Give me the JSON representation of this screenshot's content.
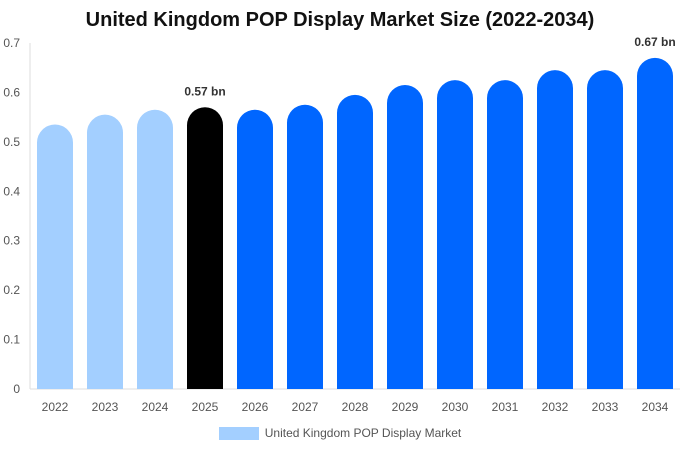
{
  "chart_data": {
    "type": "bar",
    "title": "United Kingdom POP Display Market Size (2022-2034)",
    "categories": [
      "2022",
      "2023",
      "2024",
      "2025",
      "2026",
      "2027",
      "2028",
      "2029",
      "2030",
      "2031",
      "2032",
      "2033",
      "2034"
    ],
    "series": [
      {
        "name": "United Kingdom POP Display Market",
        "values": [
          0.535,
          0.555,
          0.565,
          0.57,
          0.565,
          0.575,
          0.595,
          0.615,
          0.625,
          0.625,
          0.645,
          0.645,
          0.67
        ]
      }
    ],
    "bar_colors": [
      "#a3cfff",
      "#a3cfff",
      "#a3cfff",
      "#000000",
      "#0066ff",
      "#0066ff",
      "#0066ff",
      "#0066ff",
      "#0066ff",
      "#0066ff",
      "#0066ff",
      "#0066ff",
      "#0066ff"
    ],
    "data_labels": [
      {
        "category": "2025",
        "text": "0.57 bn"
      },
      {
        "category": "2034",
        "text": "0.67 bn"
      }
    ],
    "yticks": [
      "0",
      "0.1",
      "0.2",
      "0.3",
      "0.4",
      "0.5",
      "0.6",
      "0.7"
    ],
    "ylim": [
      0,
      0.7
    ],
    "grid": false,
    "legend_position": "bottom",
    "legend_color": "#a3cfff"
  }
}
